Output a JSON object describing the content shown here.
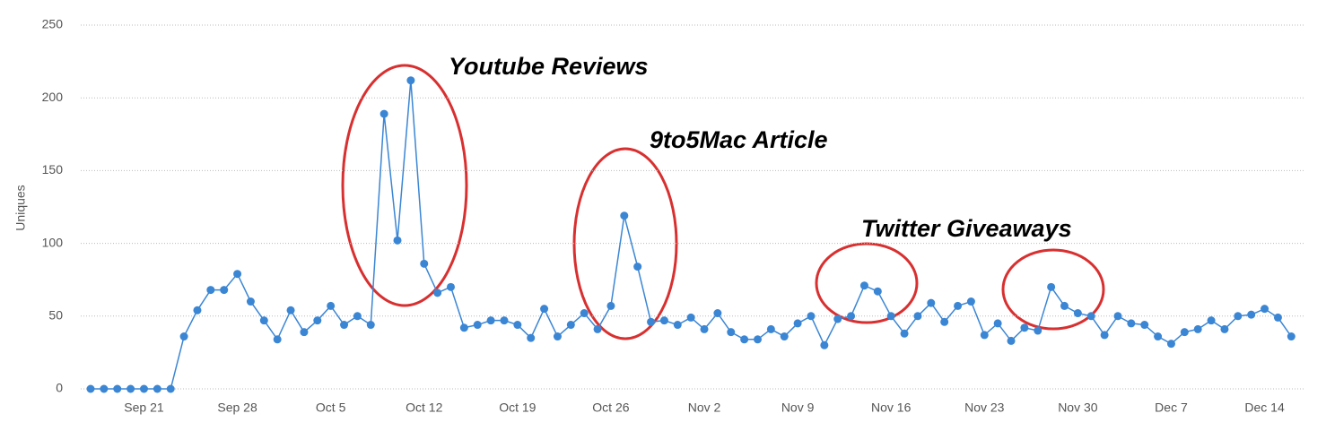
{
  "chart_data": {
    "type": "line",
    "y_label": "Uniques",
    "categories": [
      null,
      null,
      null,
      null,
      "Sep 21",
      null,
      null,
      null,
      null,
      null,
      null,
      "Sep 28",
      null,
      null,
      null,
      null,
      null,
      null,
      "Oct 5",
      null,
      null,
      null,
      null,
      null,
      null,
      "Oct 12",
      null,
      null,
      null,
      null,
      null,
      null,
      "Oct 19",
      null,
      null,
      null,
      null,
      null,
      null,
      "Oct 26",
      null,
      null,
      null,
      null,
      null,
      null,
      "Nov 2",
      null,
      null,
      null,
      null,
      null,
      null,
      "Nov 9",
      null,
      null,
      null,
      null,
      null,
      null,
      "Nov 16",
      null,
      null,
      null,
      null,
      null,
      null,
      "Nov 23",
      null,
      null,
      null,
      null,
      null,
      null,
      "Nov 30",
      null,
      null,
      null,
      null,
      null,
      null,
      "Dec 7",
      null,
      null,
      null,
      null,
      null,
      null,
      "Dec 14",
      null,
      null
    ],
    "series": [
      {
        "name": "Uniques",
        "color": "#3b86d4",
        "values": [
          0,
          0,
          0,
          0,
          0,
          0,
          0,
          36,
          54,
          68,
          68,
          79,
          60,
          47,
          34,
          54,
          39,
          47,
          57,
          44,
          50,
          44,
          189,
          102,
          212,
          86,
          66,
          70,
          42,
          44,
          47,
          47,
          44,
          35,
          55,
          36,
          44,
          52,
          41,
          57,
          119,
          84,
          46,
          47,
          44,
          49,
          41,
          52,
          39,
          34,
          34,
          41,
          36,
          45,
          50,
          30,
          48,
          50,
          71,
          67,
          50,
          38,
          50,
          59,
          46,
          57,
          60,
          37,
          45,
          33,
          42,
          40,
          70,
          57,
          52,
          50,
          37,
          50,
          45,
          44,
          36,
          31,
          39,
          41,
          47,
          41,
          50,
          51,
          55,
          49,
          36
        ]
      }
    ],
    "ylim": [
      0,
      250
    ],
    "yticks": [
      0,
      50,
      100,
      150,
      200,
      250
    ],
    "grid": true,
    "annotations": [
      "Youtube Reviews",
      "9to5Mac Article",
      "Twitter Giveaways"
    ]
  }
}
